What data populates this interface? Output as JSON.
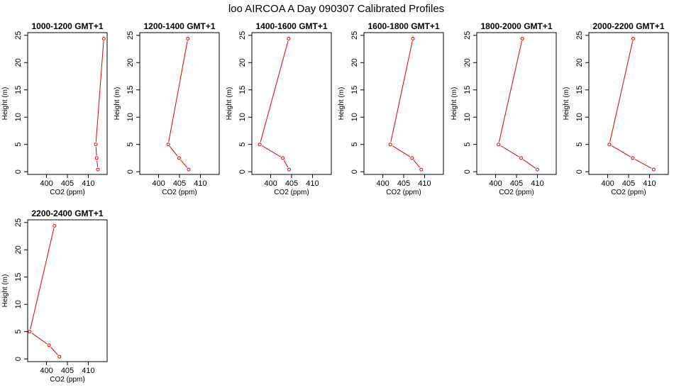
{
  "figure_title": "loo AIRCOA A  Day 090307  Calibrated Profiles",
  "colors": {
    "series": "#e00000",
    "frame": "#000000",
    "background": "#ffffff"
  },
  "chart_data": [
    {
      "type": "line",
      "title": "1000-1200 GMT+1",
      "xlabel": "CO2 (ppm)",
      "ylabel": "Height (m)",
      "xlim": [
        395.5,
        414.5
      ],
      "ylim": [
        -0.5,
        25.5
      ],
      "xticks": [
        400,
        405,
        410
      ],
      "yticks": [
        0,
        5,
        10,
        15,
        20,
        25
      ],
      "points": [
        {
          "x": 413.7,
          "y": 24.4
        },
        {
          "x": 411.8,
          "y": 5.0
        },
        {
          "x": 412.0,
          "y": 2.5
        },
        {
          "x": 412.3,
          "y": 0.4
        }
      ]
    },
    {
      "type": "line",
      "title": "1200-1400 GMT+1",
      "xlabel": "CO2 (ppm)",
      "ylabel": "Height (m)",
      "xlim": [
        395.5,
        414.5
      ],
      "ylim": [
        -0.5,
        25.5
      ],
      "xticks": [
        400,
        405,
        410
      ],
      "yticks": [
        0,
        5,
        10,
        15,
        20,
        25
      ],
      "points": [
        {
          "x": 407.0,
          "y": 24.4
        },
        {
          "x": 402.3,
          "y": 5.0
        },
        {
          "x": 404.9,
          "y": 2.5
        },
        {
          "x": 407.2,
          "y": 0.4
        }
      ]
    },
    {
      "type": "line",
      "title": "1400-1600 GMT+1",
      "xlabel": "CO2 (ppm)",
      "ylabel": "Height (m)",
      "xlim": [
        395.5,
        414.5
      ],
      "ylim": [
        -0.5,
        25.5
      ],
      "xticks": [
        400,
        405,
        410
      ],
      "yticks": [
        0,
        5,
        10,
        15,
        20,
        25
      ],
      "points": [
        {
          "x": 404.3,
          "y": 24.4
        },
        {
          "x": 397.4,
          "y": 5.0
        },
        {
          "x": 402.9,
          "y": 2.5
        },
        {
          "x": 404.4,
          "y": 0.4
        }
      ]
    },
    {
      "type": "line",
      "title": "1600-1800 GMT+1",
      "xlabel": "CO2 (ppm)",
      "ylabel": "Height (m)",
      "xlim": [
        395.5,
        414.5
      ],
      "ylim": [
        -0.5,
        25.5
      ],
      "xticks": [
        400,
        405,
        410
      ],
      "yticks": [
        0,
        5,
        10,
        15,
        20,
        25
      ],
      "points": [
        {
          "x": 407.2,
          "y": 24.4
        },
        {
          "x": 401.8,
          "y": 5.0
        },
        {
          "x": 407.0,
          "y": 2.5
        },
        {
          "x": 409.2,
          "y": 0.4
        }
      ]
    },
    {
      "type": "line",
      "title": "1800-2000 GMT+1",
      "xlabel": "CO2 (ppm)",
      "ylabel": "Height (m)",
      "xlim": [
        395.5,
        414.5
      ],
      "ylim": [
        -0.5,
        25.5
      ],
      "xticks": [
        400,
        405,
        410
      ],
      "yticks": [
        0,
        5,
        10,
        15,
        20,
        25
      ],
      "points": [
        {
          "x": 406.4,
          "y": 24.4
        },
        {
          "x": 400.7,
          "y": 5.0
        },
        {
          "x": 406.1,
          "y": 2.5
        },
        {
          "x": 410.0,
          "y": 0.4
        }
      ]
    },
    {
      "type": "line",
      "title": "2000-2200 GMT+1",
      "xlabel": "CO2 (ppm)",
      "ylabel": "Height (m)",
      "xlim": [
        395.5,
        414.5
      ],
      "ylim": [
        -0.5,
        25.5
      ],
      "xticks": [
        400,
        405,
        410
      ],
      "yticks": [
        0,
        5,
        10,
        15,
        20,
        25
      ],
      "points": [
        {
          "x": 406.1,
          "y": 24.4
        },
        {
          "x": 400.4,
          "y": 5.0
        },
        {
          "x": 406.0,
          "y": 2.5
        },
        {
          "x": 411.0,
          "y": 0.4
        }
      ]
    },
    {
      "type": "line",
      "title": "2200-2400 GMT+1",
      "xlabel": "CO2 (ppm)",
      "ylabel": "Height (m)",
      "xlim": [
        395.5,
        414.5
      ],
      "ylim": [
        -0.5,
        25.5
      ],
      "xticks": [
        400,
        405,
        410
      ],
      "yticks": [
        0,
        5,
        10,
        15,
        20,
        25
      ],
      "points": [
        {
          "x": 401.9,
          "y": 24.4
        },
        {
          "x": 396.0,
          "y": 5.0
        },
        {
          "x": 400.6,
          "y": 2.5
        },
        {
          "x": 403.1,
          "y": 0.4
        }
      ]
    }
  ]
}
